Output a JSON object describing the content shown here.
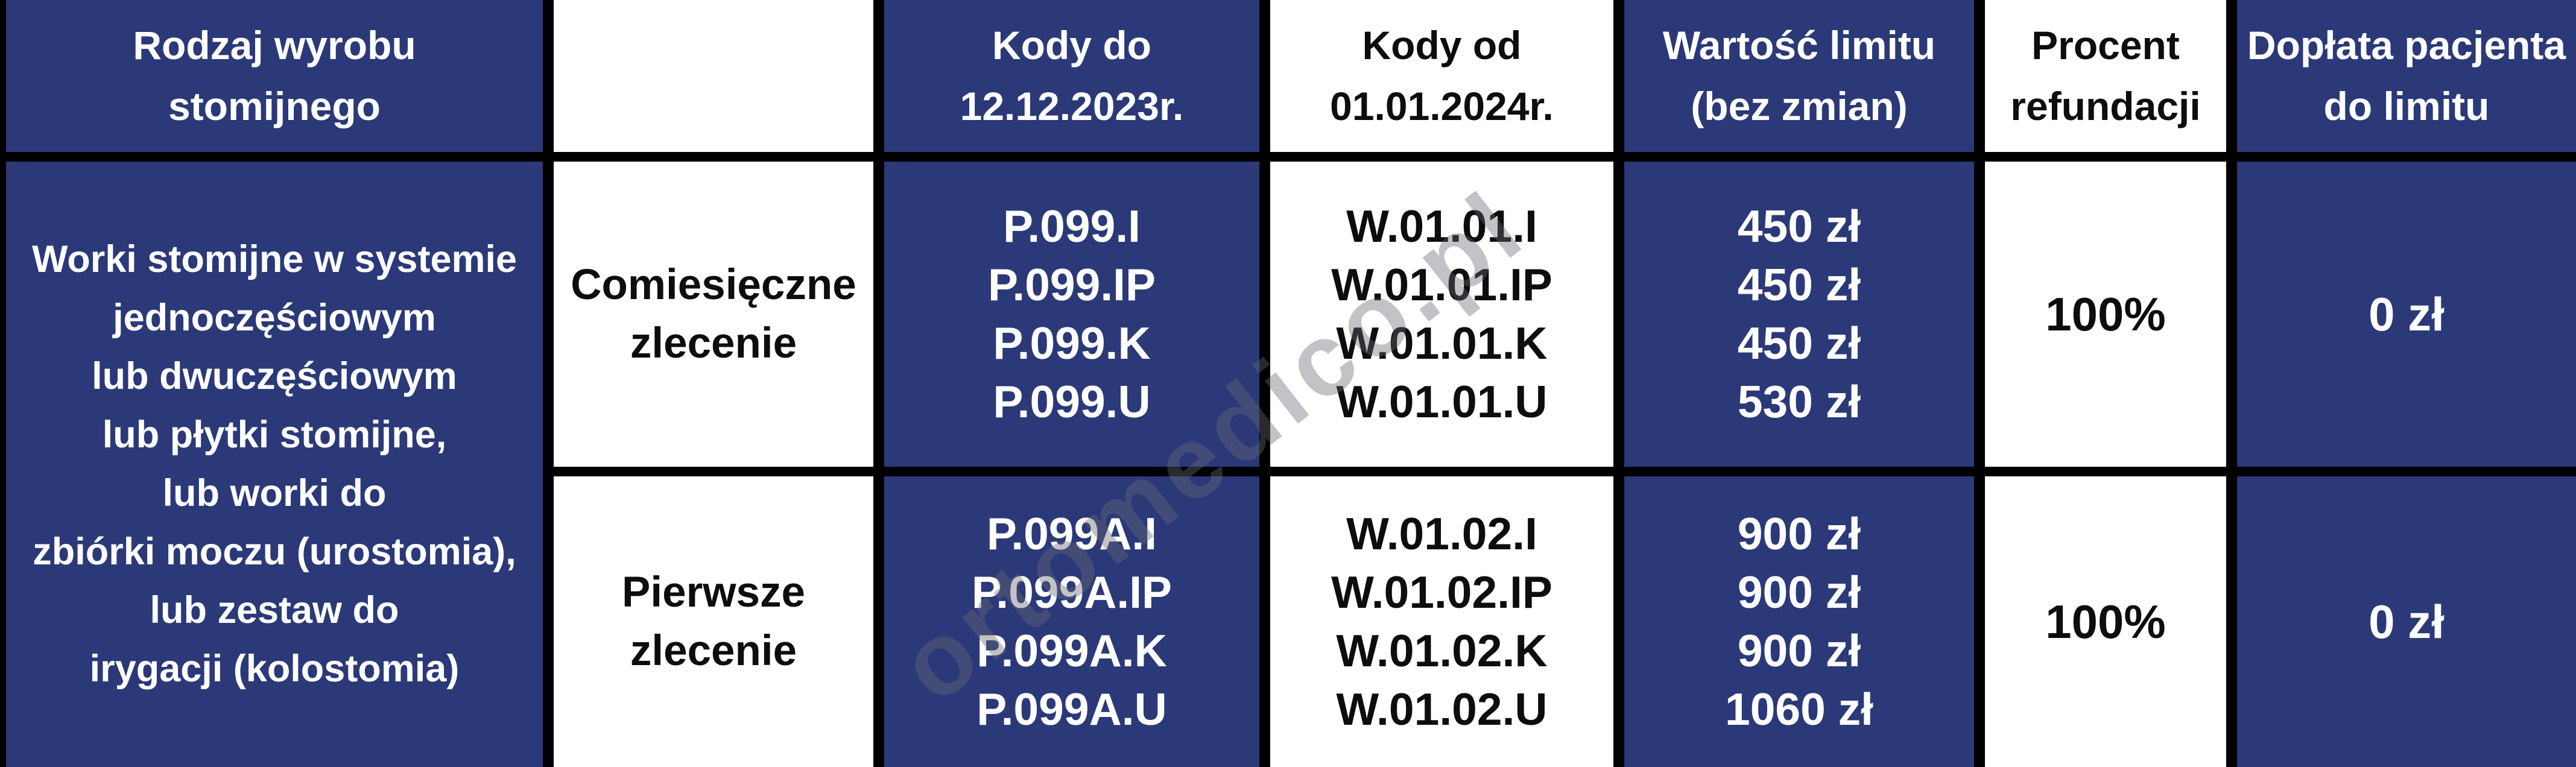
{
  "colors": {
    "navy": "#2b3979",
    "border": "#000000",
    "white_cell": "#ffffff",
    "text_on_navy": "#ffffff",
    "text_on_white": "#0d0d0d",
    "watermark_gray": "#68687466"
  },
  "watermark": "ortomedico.pl",
  "table": {
    "headers": {
      "product_type": "Rodzaj wyrobu\nstomijnego",
      "blank": "",
      "codes_until": "Kody do\n12.12.2023r.",
      "codes_from": "Kody od\n01.01.2024r.",
      "limit_value": "Wartość limitu\n(bez zmian)",
      "refund_percent": "Procent\nrefundacji",
      "patient_copay": "Dopłata pacjenta\ndo limitu"
    },
    "product_type_lines": [
      "Worki stomijne w systemie",
      "jednoczęściowym",
      "lub dwuczęściowym",
      "lub płytki stomijne,",
      "lub worki do",
      "zbiórki moczu (urostomia),",
      "lub zestaw do",
      "irygacji (kolostomia)"
    ],
    "rows": [
      {
        "order_type": "Comiesięczne\nzlecenie",
        "codes_old": [
          "P.099.I",
          "P.099.IP",
          "P.099.K",
          "P.099.U"
        ],
        "codes_new": [
          "W.01.01.I",
          "W.01.01.IP",
          "W.01.01.K",
          "W.01.01.U"
        ],
        "limit_values": [
          "450 zł",
          "450 zł",
          "450 zł",
          "530 zł"
        ],
        "refund_percent": "100%",
        "patient_copay": "0 zł"
      },
      {
        "order_type": "Pierwsze\nzlecenie",
        "codes_old": [
          "P.099A.I",
          "P.099A.IP",
          "P.099A.K",
          "P.099A.U"
        ],
        "codes_new": [
          "W.01.02.I",
          "W.01.02.IP",
          "W.01.02.K",
          "W.01.02.U"
        ],
        "limit_values": [
          "900 zł",
          "900 zł",
          "900 zł",
          "1060 zł"
        ],
        "refund_percent": "100%",
        "patient_copay": "0 zł"
      }
    ]
  },
  "chart_data": {
    "type": "table",
    "title": "Refundacja wyrobów stomijnych — kody i limity",
    "columns": [
      "Rodzaj wyrobu stomijnego",
      "",
      "Kody do 12.12.2023r.",
      "Kody od 01.01.2024r.",
      "Wartość limitu (bez zmian)",
      "Procent refundacji",
      "Dopłata pacjenta do limitu"
    ],
    "rows": [
      [
        "Worki stomijne w systemie jednoczęściowym lub dwuczęściowym lub płytki stomijne, lub worki do zbiórki moczu (urostomia), lub zestaw do irygacji (kolostomia)",
        "Comiesięczne zlecenie",
        "P.099.I; P.099.IP; P.099.K; P.099.U",
        "W.01.01.I; W.01.01.IP; W.01.01.K; W.01.01.U",
        "450 zł; 450 zł; 450 zł; 530 zł",
        "100%",
        "0 zł"
      ],
      [
        "Worki stomijne w systemie jednoczęściowym lub dwuczęściowym lub płytki stomijne, lub worki do zbiórki moczu (urostomia), lub zestaw do irygacji (kolostomia)",
        "Pierwsze zlecenie",
        "P.099A.I; P.099A.IP; P.099A.K; P.099A.U",
        "W.01.02.I; W.01.02.IP; W.01.02.K; W.01.02.U",
        "900 zł; 900 zł; 900 zł; 1060 zł",
        "100%",
        "0 zł"
      ]
    ]
  }
}
